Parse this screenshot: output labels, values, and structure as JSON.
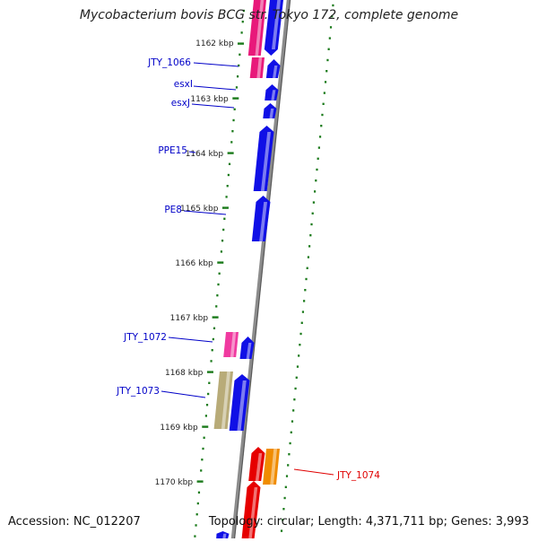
{
  "title": "Mycobacterium bovis BCG str. Tokyo 172, complete genome",
  "footer": {
    "accession": "Accession: NC_012207",
    "summary": "Topology: circular; Length: 4,371,711 bp; Genes: 3,993"
  },
  "colors": {
    "backbone": "#8c8c8c",
    "tick": "#1a7a1a",
    "gene_label": "#0000c8",
    "gene_label_highlight": "#e00000"
  },
  "kbp_ticks": [
    "1162 kbp",
    "1163 kbp",
    "1164 kbp",
    "1165 kbp",
    "1166 kbp",
    "1167 kbp",
    "1168 kbp",
    "1169 kbp",
    "1170 kbp"
  ],
  "gene_labels": [
    "JTY_1066",
    "esxI",
    "esxJ",
    "PPE15",
    "PE8",
    "JTY_1072",
    "JTY_1073",
    "JTY_1074"
  ],
  "features": [
    {
      "track": "inner-a",
      "color": "#e8197a",
      "kind": "box"
    },
    {
      "track": "inner-b",
      "color": "#1010e6",
      "kind": "arrow"
    },
    {
      "track": "inner-a",
      "color": "#e8197a",
      "kind": "box"
    },
    {
      "track": "inner-b",
      "color": "#1010e6",
      "kind": "arrow"
    },
    {
      "track": "inner-b",
      "color": "#1010e6",
      "kind": "arrow"
    },
    {
      "track": "inner-b",
      "color": "#1010e6",
      "kind": "arrow"
    },
    {
      "track": "inner-b",
      "color": "#1010e6",
      "kind": "arrow"
    },
    {
      "track": "inner-b",
      "color": "#1010e6",
      "kind": "arrow"
    },
    {
      "track": "inner-a",
      "color": "#f03aa0",
      "kind": "box"
    },
    {
      "track": "inner-b",
      "color": "#1010e6",
      "kind": "arrow"
    },
    {
      "track": "inner-a",
      "color": "#b8ab78",
      "kind": "box"
    },
    {
      "track": "inner-b",
      "color": "#1010e6",
      "kind": "arrow"
    },
    {
      "track": "inner-a",
      "color": "#e60000",
      "kind": "arrow"
    },
    {
      "track": "inner-b",
      "color": "#f08c00",
      "kind": "box"
    },
    {
      "track": "inner-a",
      "color": "#e60000",
      "kind": "arrow"
    },
    {
      "track": "inner-b",
      "color": "#1010e6",
      "kind": "arrow"
    }
  ]
}
